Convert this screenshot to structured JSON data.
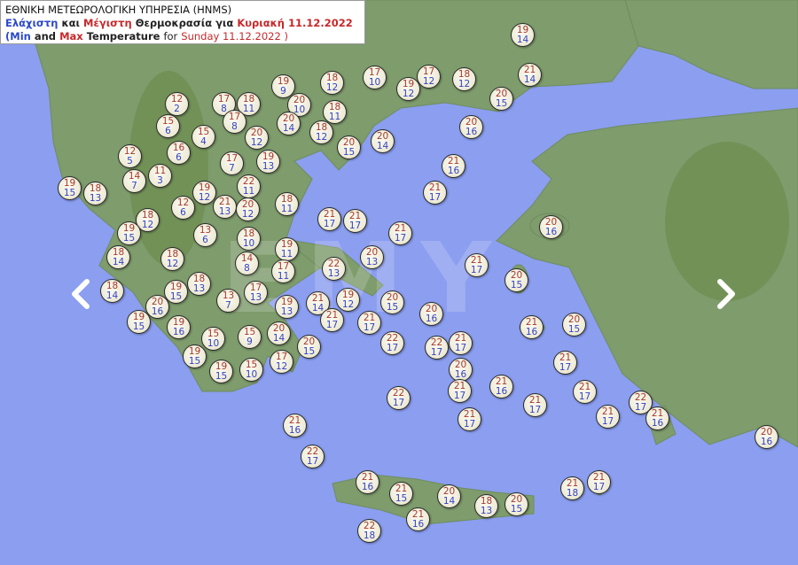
{
  "header": {
    "agency": "ΕΘΝΙΚΗ ΜΕΤΕΩΡΟΛΟΓΙΚΗ ΥΠΗΡΕΣΙΑ (HNMS)",
    "gr_min": "Ελάχιστη",
    "gr_and": "και",
    "gr_max": "Μέγιστη",
    "gr_temp_for": "Θερμοκρασία για",
    "gr_date": "Κυριακή 11.12.2022",
    "en_open": "(",
    "en_min": "Min",
    "en_and": "and",
    "en_max": "Max",
    "en_temp": "Temperature",
    "en_for": "for",
    "en_date": "Sunday 11.12.2022 )"
  },
  "watermark": "EMY",
  "colors": {
    "sea": "#8b9ef0",
    "land": "#7e9c6c",
    "max_text": "#a8382e",
    "min_text": "#3542c4"
  },
  "navigation": {
    "prev_icon": "chevron-left-icon",
    "next_icon": "chevron-right-icon"
  },
  "stations": [
    {
      "max": "19",
      "min": "14"
    },
    {
      "max": "21",
      "min": "14"
    },
    {
      "max": "17",
      "min": "10"
    },
    {
      "max": "17",
      "min": "12"
    },
    {
      "max": "18",
      "min": "12"
    },
    {
      "max": "18",
      "min": "12"
    },
    {
      "max": "19",
      "min": "9"
    },
    {
      "max": "19",
      "min": "12"
    },
    {
      "max": "20",
      "min": "15"
    },
    {
      "max": "12",
      "min": "2"
    },
    {
      "max": "17",
      "min": "8"
    },
    {
      "max": "18",
      "min": "11"
    },
    {
      "max": "20",
      "min": "10"
    },
    {
      "max": "18",
      "min": "11"
    },
    {
      "max": "15",
      "min": "6"
    },
    {
      "max": "17",
      "min": "8"
    },
    {
      "max": "20",
      "min": "14"
    },
    {
      "max": "20",
      "min": "16"
    },
    {
      "max": "15",
      "min": "4"
    },
    {
      "max": "20",
      "min": "12"
    },
    {
      "max": "18",
      "min": "12"
    },
    {
      "max": "20",
      "min": "14"
    },
    {
      "max": "20",
      "min": "15"
    },
    {
      "max": "16",
      "min": "6"
    },
    {
      "max": "12",
      "min": "5"
    },
    {
      "max": "17",
      "min": "7"
    },
    {
      "max": "19",
      "min": "13"
    },
    {
      "max": "21",
      "min": "16"
    },
    {
      "max": "11",
      "min": "3"
    },
    {
      "max": "14",
      "min": "7"
    },
    {
      "max": "19",
      "min": "15"
    },
    {
      "max": "18",
      "min": "13"
    },
    {
      "max": "22",
      "min": "11"
    },
    {
      "max": "19",
      "min": "12"
    },
    {
      "max": "21",
      "min": "17"
    },
    {
      "max": "12",
      "min": "6"
    },
    {
      "max": "21",
      "min": "13"
    },
    {
      "max": "20",
      "min": "12"
    },
    {
      "max": "18",
      "min": "11"
    },
    {
      "max": "21",
      "min": "17"
    },
    {
      "max": "21",
      "min": "17"
    },
    {
      "max": "18",
      "min": "12"
    },
    {
      "max": "20",
      "min": "16"
    },
    {
      "max": "19",
      "min": "15"
    },
    {
      "max": "21",
      "min": "17"
    },
    {
      "max": "13",
      "min": "6"
    },
    {
      "max": "18",
      "min": "10"
    },
    {
      "max": "19",
      "min": "11"
    },
    {
      "max": "18",
      "min": "14"
    },
    {
      "max": "20",
      "min": "13"
    },
    {
      "max": "18",
      "min": "12"
    },
    {
      "max": "21",
      "min": "17"
    },
    {
      "max": "14",
      "min": "8"
    },
    {
      "max": "17",
      "min": "11"
    },
    {
      "max": "22",
      "min": "13"
    },
    {
      "max": "20",
      "min": "15"
    },
    {
      "max": "18",
      "min": "13"
    },
    {
      "max": "18",
      "min": "14"
    },
    {
      "max": "19",
      "min": "15"
    },
    {
      "max": "13",
      "min": "7"
    },
    {
      "max": "17",
      "min": "13"
    },
    {
      "max": "21",
      "min": "14"
    },
    {
      "max": "19",
      "min": "12"
    },
    {
      "max": "20",
      "min": "16"
    },
    {
      "max": "19",
      "min": "13"
    },
    {
      "max": "20",
      "min": "15"
    },
    {
      "max": "20",
      "min": "16"
    },
    {
      "max": "21",
      "min": "17"
    },
    {
      "max": "21",
      "min": "17"
    },
    {
      "max": "21",
      "min": "16"
    },
    {
      "max": "20",
      "min": "15"
    },
    {
      "max": "19",
      "min": "15"
    },
    {
      "max": "19",
      "min": "16"
    },
    {
      "max": "15",
      "min": "9"
    },
    {
      "max": "20",
      "min": "14"
    },
    {
      "max": "15",
      "min": "10"
    },
    {
      "max": "22",
      "min": "17"
    },
    {
      "max": "22",
      "min": "17"
    },
    {
      "max": "21",
      "min": "17"
    },
    {
      "max": "20",
      "min": "15"
    },
    {
      "max": "19",
      "min": "15"
    },
    {
      "max": "20",
      "min": "16"
    },
    {
      "max": "21",
      "min": "17"
    },
    {
      "max": "19",
      "min": "15"
    },
    {
      "max": "15",
      "min": "10"
    },
    {
      "max": "17",
      "min": "12"
    },
    {
      "max": "21",
      "min": "16"
    },
    {
      "max": "21",
      "min": "17"
    },
    {
      "max": "21",
      "min": "17"
    },
    {
      "max": "22",
      "min": "17"
    },
    {
      "max": "21",
      "min": "17"
    },
    {
      "max": "22",
      "min": "17"
    },
    {
      "max": "21",
      "min": "17"
    },
    {
      "max": "21",
      "min": "16"
    },
    {
      "max": "21",
      "min": "17"
    },
    {
      "max": "21",
      "min": "16"
    },
    {
      "max": "20",
      "min": "16"
    },
    {
      "max": "22",
      "min": "17"
    },
    {
      "max": "21",
      "min": "16"
    },
    {
      "max": "21",
      "min": "17"
    },
    {
      "max": "21",
      "min": "15"
    },
    {
      "max": "20",
      "min": "14"
    },
    {
      "max": "21",
      "min": "18"
    },
    {
      "max": "18",
      "min": "13"
    },
    {
      "max": "20",
      "min": "15"
    },
    {
      "max": "21",
      "min": "16"
    },
    {
      "max": "22",
      "min": "18"
    }
  ]
}
